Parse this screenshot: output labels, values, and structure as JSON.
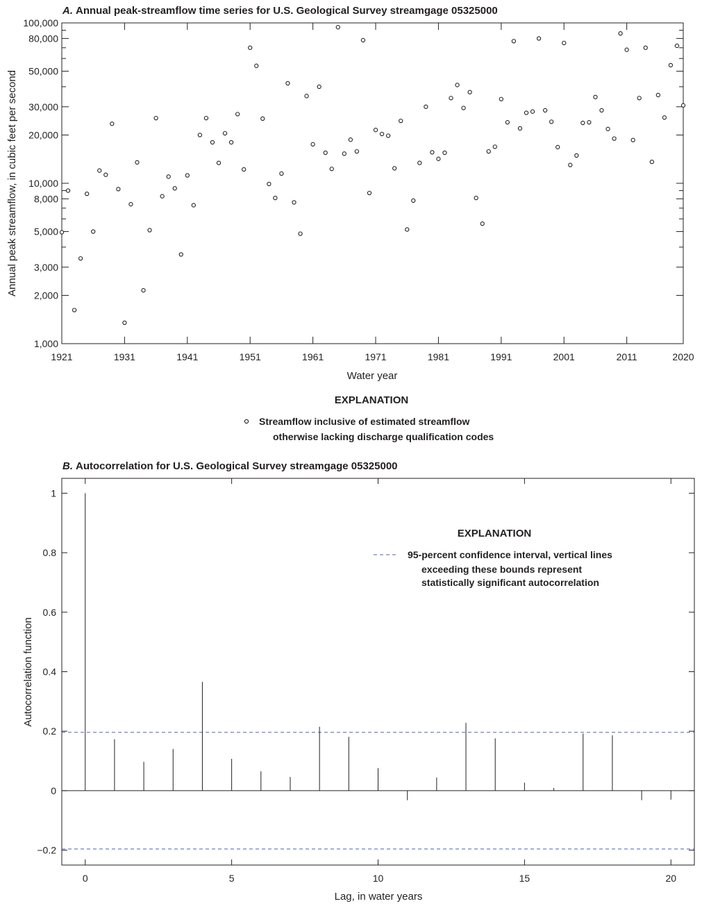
{
  "chart_data": [
    {
      "type": "scatter",
      "panel_label": "A.",
      "title": "Annual peak-streamflow time series for U.S. Geological Survey streamgage 05325000",
      "xlabel": "Water year",
      "ylabel": "Annual peak streamflow, in cubic feet per second",
      "y_scale": "log",
      "xlim": [
        1921,
        2020
      ],
      "ylim": [
        1000,
        100000
      ],
      "x_ticks": [
        "1921",
        "1931",
        "1941",
        "1951",
        "1961",
        "1971",
        "1981",
        "1991",
        "2001",
        "2011",
        "2020"
      ],
      "y_ticks": [
        {
          "value": 1000,
          "label": "1,000"
        },
        {
          "value": 2000,
          "label": "2,000"
        },
        {
          "value": 3000,
          "label": "3,000"
        },
        {
          "value": 5000,
          "label": "5,000"
        },
        {
          "value": 8000,
          "label": "8,000"
        },
        {
          "value": 10000,
          "label": "10,000"
        },
        {
          "value": 20000,
          "label": "20,000"
        },
        {
          "value": 30000,
          "label": "30,000"
        },
        {
          "value": 50000,
          "label": "50,000"
        },
        {
          "value": 80000,
          "label": "80,000"
        },
        {
          "value": 100000,
          "label": "100,000"
        }
      ],
      "y_minor_ticks": [
        4000,
        6000,
        7000,
        9000,
        40000,
        60000,
        70000,
        90000
      ],
      "legend": {
        "heading": "EXPLANATION",
        "entry_line1": "Streamflow inclusive of estimated streamflow",
        "entry_line2": "otherwise lacking discharge qualification codes"
      },
      "series": [
        {
          "marker": "open-circle",
          "x": [
            1921,
            1922,
            1923,
            1924,
            1925,
            1926,
            1927,
            1928,
            1929,
            1930,
            1931,
            1932,
            1933,
            1934,
            1935,
            1936,
            1937,
            1938,
            1939,
            1940,
            1941,
            1942,
            1943,
            1944,
            1945,
            1946,
            1947,
            1948,
            1949,
            1950,
            1951,
            1952,
            1953,
            1954,
            1955,
            1956,
            1957,
            1958,
            1959,
            1960,
            1961,
            1962,
            1963,
            1964,
            1965,
            1966,
            1967,
            1968,
            1969,
            1970,
            1971,
            1972,
            1973,
            1974,
            1975,
            1976,
            1977,
            1978,
            1979,
            1980,
            1981,
            1982,
            1983,
            1984,
            1985,
            1986,
            1987,
            1988,
            1989,
            1990,
            1991,
            1992,
            1993,
            1994,
            1995,
            1996,
            1997,
            1998,
            1999,
            2000,
            2001,
            2002,
            2003,
            2004,
            2005,
            2006,
            2007,
            2008,
            2009,
            2010,
            2011,
            2012,
            2013,
            2014,
            2015,
            2016,
            2017,
            2018,
            2019,
            2020
          ],
          "y": [
            4950,
            9000,
            1620,
            3400,
            8600,
            5000,
            12000,
            11300,
            23500,
            9200,
            1350,
            7400,
            13500,
            2150,
            5100,
            25500,
            8300,
            11000,
            9300,
            3600,
            11200,
            7300,
            20000,
            25500,
            18000,
            13400,
            20500,
            18000,
            27000,
            12200,
            70000,
            54000,
            25300,
            9900,
            8100,
            11500,
            42000,
            7600,
            4850,
            35000,
            17500,
            40000,
            15500,
            12300,
            94000,
            15300,
            18700,
            15800,
            78000,
            8700,
            21500,
            20300,
            19800,
            12400,
            24500,
            5150,
            7800,
            13400,
            30000,
            15600,
            14200,
            15500,
            34000,
            41000,
            29500,
            37000,
            8100,
            5600,
            15800,
            16900,
            33500,
            24000,
            77000,
            22000,
            27500,
            28000,
            80000,
            28500,
            24200,
            16800,
            75000,
            13000,
            14900,
            23800,
            24000,
            34500,
            28500,
            21800,
            19000,
            86000,
            68000,
            18600,
            34000,
            70000,
            13600,
            35500,
            25700,
            54500,
            72000,
            30600
          ]
        }
      ]
    },
    {
      "type": "bar",
      "panel_label": "B.",
      "title": "Autocorrelation for U.S. Geological Survey streamgage 05325000",
      "xlabel": "Lag, in water years",
      "ylabel": "Autocorrelation function",
      "xlim": [
        -0.8,
        20.8
      ],
      "ylim": [
        -0.25,
        1.05
      ],
      "x_ticks": [
        {
          "value": 0,
          "label": "0"
        },
        {
          "value": 5,
          "label": "5"
        },
        {
          "value": 10,
          "label": "10"
        },
        {
          "value": 15,
          "label": "15"
        },
        {
          "value": 20,
          "label": "20"
        }
      ],
      "y_ticks": [
        {
          "value": -0.2,
          "label": "−0.2"
        },
        {
          "value": 0,
          "label": "0"
        },
        {
          "value": 0.2,
          "label": "0.2"
        },
        {
          "value": 0.4,
          "label": "0.4"
        },
        {
          "value": 0.6,
          "label": "0.6"
        },
        {
          "value": 0.8,
          "label": "0.8"
        },
        {
          "value": 1,
          "label": "1"
        }
      ],
      "confidence_interval": [
        -0.196,
        0.196
      ],
      "confidence_color": "#4a5fc4",
      "legend": {
        "heading": "EXPLANATION",
        "entry_line1": "95-percent confidence interval, vertical lines",
        "entry_line2": "exceeding these bounds represent",
        "entry_line3": "statistically significant autocorrelation"
      },
      "lags": [
        0,
        1,
        2,
        3,
        4,
        5,
        6,
        7,
        8,
        9,
        10,
        11,
        12,
        13,
        14,
        15,
        16,
        17,
        18,
        19,
        20
      ],
      "values": [
        1.0,
        0.173,
        0.097,
        0.14,
        0.366,
        0.107,
        0.065,
        0.046,
        0.215,
        0.181,
        0.076,
        -0.032,
        0.044,
        0.228,
        0.176,
        0.027,
        0.009,
        0.192,
        0.186,
        -0.032,
        -0.03
      ]
    }
  ]
}
